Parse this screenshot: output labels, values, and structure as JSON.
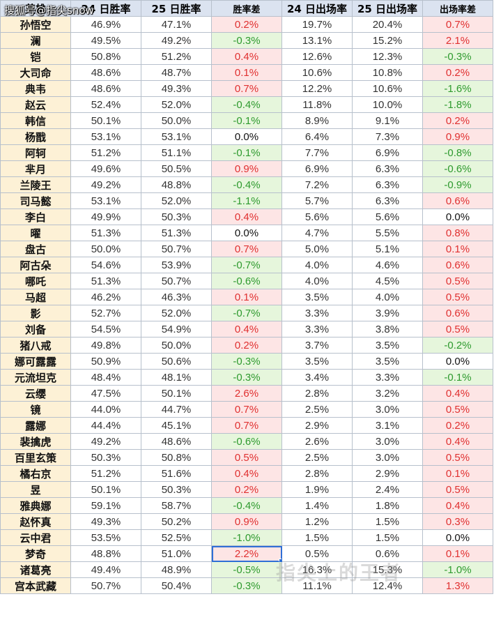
{
  "headers": [
    "英雄",
    "24 日胜率",
    "25 日胜率",
    "胜率差",
    "24 日出场率",
    "25 日出场率",
    "出场率差"
  ],
  "watermark_top": "搜狐号@指尖snow",
  "watermark_bottom": "指尖上的王者",
  "colors": {
    "positive_bg": "#fde5e5",
    "positive_text": "#e03030",
    "negative_bg": "#e6f6dc",
    "negative_text": "#2e9a2e",
    "header_bg": "#dbe3f0",
    "name_bg": "#fdf1d6"
  },
  "rows": [
    {
      "name": "孙悟空",
      "wr24": "46.9%",
      "wr25": "47.1%",
      "wrdiff": "0.2%",
      "pr24": "19.7%",
      "pr25": "20.4%",
      "prdiff": "0.7%"
    },
    {
      "name": "澜",
      "wr24": "49.5%",
      "wr25": "49.2%",
      "wrdiff": "-0.3%",
      "pr24": "13.1%",
      "pr25": "15.2%",
      "prdiff": "2.1%"
    },
    {
      "name": "铠",
      "wr24": "50.8%",
      "wr25": "51.2%",
      "wrdiff": "0.4%",
      "pr24": "12.6%",
      "pr25": "12.3%",
      "prdiff": "-0.3%"
    },
    {
      "name": "大司命",
      "wr24": "48.6%",
      "wr25": "48.7%",
      "wrdiff": "0.1%",
      "pr24": "10.6%",
      "pr25": "10.8%",
      "prdiff": "0.2%"
    },
    {
      "name": "典韦",
      "wr24": "48.6%",
      "wr25": "49.3%",
      "wrdiff": "0.7%",
      "pr24": "12.2%",
      "pr25": "10.6%",
      "prdiff": "-1.6%"
    },
    {
      "name": "赵云",
      "wr24": "52.4%",
      "wr25": "52.0%",
      "wrdiff": "-0.4%",
      "pr24": "11.8%",
      "pr25": "10.0%",
      "prdiff": "-1.8%"
    },
    {
      "name": "韩信",
      "wr24": "50.1%",
      "wr25": "50.0%",
      "wrdiff": "-0.1%",
      "pr24": "8.9%",
      "pr25": "9.1%",
      "prdiff": "0.2%"
    },
    {
      "name": "杨戬",
      "wr24": "53.1%",
      "wr25": "53.1%",
      "wrdiff": "0.0%",
      "pr24": "6.4%",
      "pr25": "7.3%",
      "prdiff": "0.9%"
    },
    {
      "name": "阿轲",
      "wr24": "51.2%",
      "wr25": "51.1%",
      "wrdiff": "-0.1%",
      "pr24": "7.7%",
      "pr25": "6.9%",
      "prdiff": "-0.8%"
    },
    {
      "name": "芈月",
      "wr24": "49.6%",
      "wr25": "50.5%",
      "wrdiff": "0.9%",
      "pr24": "6.9%",
      "pr25": "6.3%",
      "prdiff": "-0.6%"
    },
    {
      "name": "兰陵王",
      "wr24": "49.2%",
      "wr25": "48.8%",
      "wrdiff": "-0.4%",
      "pr24": "7.2%",
      "pr25": "6.3%",
      "prdiff": "-0.9%"
    },
    {
      "name": "司马懿",
      "wr24": "53.1%",
      "wr25": "52.0%",
      "wrdiff": "-1.1%",
      "pr24": "5.7%",
      "pr25": "6.3%",
      "prdiff": "0.6%"
    },
    {
      "name": "李白",
      "wr24": "49.9%",
      "wr25": "50.3%",
      "wrdiff": "0.4%",
      "pr24": "5.6%",
      "pr25": "5.6%",
      "prdiff": "0.0%"
    },
    {
      "name": "曜",
      "wr24": "51.3%",
      "wr25": "51.3%",
      "wrdiff": "0.0%",
      "pr24": "4.7%",
      "pr25": "5.5%",
      "prdiff": "0.8%"
    },
    {
      "name": "盘古",
      "wr24": "50.0%",
      "wr25": "50.7%",
      "wrdiff": "0.7%",
      "pr24": "5.0%",
      "pr25": "5.1%",
      "prdiff": "0.1%"
    },
    {
      "name": "阿古朵",
      "wr24": "54.6%",
      "wr25": "53.9%",
      "wrdiff": "-0.7%",
      "pr24": "4.0%",
      "pr25": "4.6%",
      "prdiff": "0.6%"
    },
    {
      "name": "哪吒",
      "wr24": "51.3%",
      "wr25": "50.7%",
      "wrdiff": "-0.6%",
      "pr24": "4.0%",
      "pr25": "4.5%",
      "prdiff": "0.5%"
    },
    {
      "name": "马超",
      "wr24": "46.2%",
      "wr25": "46.3%",
      "wrdiff": "0.1%",
      "pr24": "3.5%",
      "pr25": "4.0%",
      "prdiff": "0.5%"
    },
    {
      "name": "影",
      "wr24": "52.7%",
      "wr25": "52.0%",
      "wrdiff": "-0.7%",
      "pr24": "3.3%",
      "pr25": "3.9%",
      "prdiff": "0.6%"
    },
    {
      "name": "刘备",
      "wr24": "54.5%",
      "wr25": "54.9%",
      "wrdiff": "0.4%",
      "pr24": "3.3%",
      "pr25": "3.8%",
      "prdiff": "0.5%"
    },
    {
      "name": "猪八戒",
      "wr24": "49.8%",
      "wr25": "50.0%",
      "wrdiff": "0.2%",
      "pr24": "3.7%",
      "pr25": "3.5%",
      "prdiff": "-0.2%"
    },
    {
      "name": "娜可露露",
      "wr24": "50.9%",
      "wr25": "50.6%",
      "wrdiff": "-0.3%",
      "pr24": "3.5%",
      "pr25": "3.5%",
      "prdiff": "0.0%"
    },
    {
      "name": "元流坦克",
      "wr24": "48.4%",
      "wr25": "48.1%",
      "wrdiff": "-0.3%",
      "pr24": "3.4%",
      "pr25": "3.3%",
      "prdiff": "-0.1%"
    },
    {
      "name": "云缨",
      "wr24": "47.5%",
      "wr25": "50.1%",
      "wrdiff": "2.6%",
      "pr24": "2.8%",
      "pr25": "3.2%",
      "prdiff": "0.4%"
    },
    {
      "name": "镜",
      "wr24": "44.0%",
      "wr25": "44.7%",
      "wrdiff": "0.7%",
      "pr24": "2.5%",
      "pr25": "3.0%",
      "prdiff": "0.5%"
    },
    {
      "name": "露娜",
      "wr24": "44.4%",
      "wr25": "45.1%",
      "wrdiff": "0.7%",
      "pr24": "2.9%",
      "pr25": "3.1%",
      "prdiff": "0.2%"
    },
    {
      "name": "裴擒虎",
      "wr24": "49.2%",
      "wr25": "48.6%",
      "wrdiff": "-0.6%",
      "pr24": "2.6%",
      "pr25": "3.0%",
      "prdiff": "0.4%"
    },
    {
      "name": "百里玄策",
      "wr24": "50.3%",
      "wr25": "50.8%",
      "wrdiff": "0.5%",
      "pr24": "2.5%",
      "pr25": "3.0%",
      "prdiff": "0.5%"
    },
    {
      "name": "橘右京",
      "wr24": "51.2%",
      "wr25": "51.6%",
      "wrdiff": "0.4%",
      "pr24": "2.8%",
      "pr25": "2.9%",
      "prdiff": "0.1%"
    },
    {
      "name": "昱",
      "wr24": "50.1%",
      "wr25": "50.3%",
      "wrdiff": "0.2%",
      "pr24": "1.9%",
      "pr25": "2.4%",
      "prdiff": "0.5%"
    },
    {
      "name": "雅典娜",
      "wr24": "59.1%",
      "wr25": "58.7%",
      "wrdiff": "-0.4%",
      "pr24": "1.4%",
      "pr25": "1.8%",
      "prdiff": "0.4%"
    },
    {
      "name": "赵怀真",
      "wr24": "49.3%",
      "wr25": "50.2%",
      "wrdiff": "0.9%",
      "pr24": "1.2%",
      "pr25": "1.5%",
      "prdiff": "0.3%"
    },
    {
      "name": "云中君",
      "wr24": "53.5%",
      "wr25": "52.5%",
      "wrdiff": "-1.0%",
      "pr24": "1.5%",
      "pr25": "1.5%",
      "prdiff": "0.0%"
    },
    {
      "name": "梦奇",
      "wr24": "48.8%",
      "wr25": "51.0%",
      "wrdiff": "2.2%",
      "pr24": "0.5%",
      "pr25": "0.6%",
      "prdiff": "0.1%"
    },
    {
      "name": "诸葛亮",
      "wr24": "49.4%",
      "wr25": "48.9%",
      "wrdiff": "-0.5%",
      "pr24": "16.3%",
      "pr25": "15.3%",
      "prdiff": "-1.0%"
    },
    {
      "name": "宫本武藏",
      "wr24": "50.7%",
      "wr25": "50.4%",
      "wrdiff": "-0.3%",
      "pr24": "11.1%",
      "pr25": "12.4%",
      "prdiff": "1.3%"
    }
  ]
}
